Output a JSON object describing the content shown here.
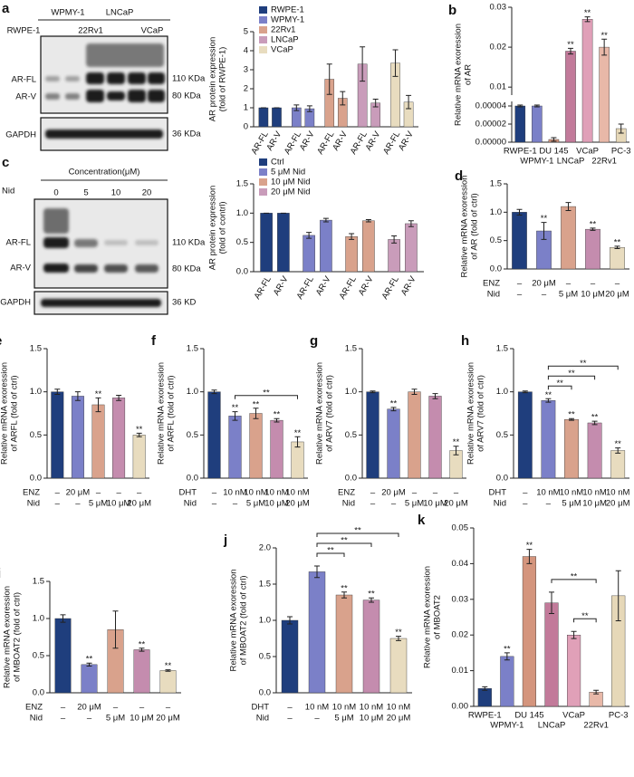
{
  "blots": [
    {
      "panel": "a",
      "groups": [
        "WPMY-1",
        "LNCaP"
      ],
      "lanes": [
        "RWPE-1",
        "22Rv1",
        "VCaP"
      ],
      "bands": [
        "AR-FL",
        "AR-V",
        "GAPDH"
      ],
      "sizes": [
        "110 KDa",
        "80 KDa",
        "36 KDa"
      ]
    },
    {
      "panel": "c",
      "header": "Concentration(μM)",
      "treatment": "Nid",
      "lanes": [
        "0",
        "5",
        "10",
        "20"
      ],
      "bands": [
        "AR-FL",
        "AR-V",
        "GAPDH"
      ],
      "sizes": [
        "110 KDa",
        "80 KDa",
        "36 KD"
      ]
    }
  ],
  "chart_data": [
    {
      "type": "grouped_bar",
      "ylabel": [
        "AR protein expression",
        "(fold of RWPE-1)"
      ],
      "categories": [
        "AR-FL",
        "AR-V"
      ],
      "series": [
        {
          "name": "RWPE-1",
          "color": "#1f3e7d",
          "values": [
            1,
            1
          ],
          "errors": [
            0,
            0
          ]
        },
        {
          "name": "WPMY-1",
          "color": "#7b80c8",
          "values": [
            1.0,
            0.95
          ],
          "errors": [
            0.15,
            0.15
          ]
        },
        {
          "name": "22Rv1",
          "color": "#d9a28c",
          "values": [
            2.5,
            1.5
          ],
          "errors": [
            0.8,
            0.35
          ]
        },
        {
          "name": "LNCaP",
          "color": "#c99cba",
          "values": [
            3.3,
            1.25
          ],
          "errors": [
            0.9,
            0.2
          ]
        },
        {
          "name": "VCaP",
          "color": "#e8dcbf",
          "values": [
            3.35,
            1.3
          ],
          "errors": [
            0.7,
            0.35
          ]
        }
      ],
      "ylim": [
        0,
        5
      ],
      "yticks": [
        0,
        1,
        2,
        3,
        4,
        5
      ]
    },
    {
      "type": "broken_bar",
      "panel": "b",
      "ylabel": [
        "Relative mRNA exoression",
        "of AR"
      ],
      "categories": [
        "RWPE-1",
        "WPMY-1",
        "DU 145",
        "LNCaP",
        "VCaP",
        "22Rv1",
        "PC-3"
      ],
      "values": [
        4e-05,
        4e-05,
        3e-06,
        0.019,
        0.027,
        0.02,
        1.5e-05
      ],
      "errors": [
        1e-06,
        1e-06,
        2e-06,
        0.0007,
        0.0006,
        0.002,
        5e-06
      ],
      "colors": [
        "#1f3e7d",
        "#7b80c8",
        "#d4957d",
        "#c27a9a",
        "#e0a0b8",
        "#e8b8a8",
        "#e6d8b8"
      ],
      "significance": [
        null,
        null,
        null,
        "**",
        "**",
        "**",
        null
      ],
      "ylim_lower": [
        0,
        4.5e-05
      ],
      "yticks_lower": [
        {
          "value": 0,
          "label": "0.00000"
        },
        2e-05,
        4e-05
      ],
      "ylim_upper": [
        0.008,
        0.03
      ],
      "yticks_upper": [
        0.01,
        0.02,
        0.03
      ]
    },
    {
      "type": "grouped_bar",
      "ylabel": [
        "AR protein expression",
        "(fold of contrl)"
      ],
      "categories": [
        "AR-FL",
        "AR-V"
      ],
      "series": [
        {
          "name": "Ctrl",
          "color": "#1f3e7d",
          "values": [
            1,
            1
          ],
          "errors": [
            0,
            0
          ]
        },
        {
          "name": "5 μM Nid",
          "color": "#7b80c8",
          "values": [
            0.62,
            0.88
          ],
          "errors": [
            0.05,
            0.03
          ]
        },
        {
          "name": "10 μM Nid",
          "color": "#d9a28c",
          "values": [
            0.6,
            0.87
          ],
          "errors": [
            0.05,
            0.02
          ]
        },
        {
          "name": "20 μM Nid",
          "color": "#c99cba",
          "values": [
            0.55,
            0.82
          ],
          "errors": [
            0.06,
            0.05
          ]
        }
      ],
      "ylim": [
        0,
        1.5
      ],
      "yticks": [
        {
          "value": 0,
          "label": "0.0"
        },
        0.5,
        {
          "value": 1,
          "label": "1.0"
        },
        1.5
      ]
    },
    {
      "type": "bar",
      "panel": "d",
      "ylabel": [
        "Relative mRNA exoression",
        "of AR (fold of ctrl)"
      ],
      "values": [
        1.0,
        0.67,
        1.1,
        0.7,
        0.38
      ],
      "errors": [
        0.05,
        0.15,
        0.07,
        0.02,
        0.02
      ],
      "colors": [
        "#1f3e7d",
        "#7b80c8",
        "#d9a28c",
        "#c48cae",
        "#e8dcbf"
      ],
      "significance": [
        null,
        "**",
        null,
        "**",
        "**"
      ],
      "treatments": [
        {
          "name": "ENZ",
          "labels": [
            "–",
            "20 μM",
            "–",
            "–",
            "–"
          ]
        },
        {
          "name": "Nid",
          "labels": [
            "–",
            "–",
            "5 μM",
            "10 μM",
            "20 μM"
          ]
        }
      ],
      "ylim": [
        0,
        1.5
      ],
      "yticks": [
        {
          "value": 0,
          "label": "0.0"
        },
        0.5,
        {
          "value": 1,
          "label": "1.0"
        },
        1.5
      ]
    },
    {
      "type": "bar",
      "panel": "e",
      "ylabel": [
        "Relative mRNA exoression",
        "of ARFL (fold of ctrl)"
      ],
      "values": [
        1.0,
        0.95,
        0.85,
        0.93,
        0.5
      ],
      "errors": [
        0.03,
        0.05,
        0.08,
        0.03,
        0.02
      ],
      "colors": [
        "#1f3e7d",
        "#7b80c8",
        "#d9a28c",
        "#c48cae",
        "#e8dcbf"
      ],
      "significance": [
        null,
        null,
        "**",
        null,
        "**"
      ],
      "treatments": [
        {
          "name": "ENZ",
          "labels": [
            "–",
            "20 μM",
            "–",
            "–",
            "–"
          ]
        },
        {
          "name": "Nid",
          "labels": [
            "–",
            "–",
            "5 μM",
            "10 μM",
            "20 μM"
          ]
        }
      ],
      "ylim": [
        0,
        1.5
      ],
      "yticks": [
        {
          "value": 0,
          "label": "0.0"
        },
        0.5,
        {
          "value": 1,
          "label": "1.0"
        },
        1.5
      ]
    },
    {
      "type": "bar",
      "panel": "f",
      "ylabel": [
        "Relative mRNA exoression",
        "of ARFL (fold of ctrl)"
      ],
      "values": [
        1.0,
        0.72,
        0.75,
        0.67,
        0.42
      ],
      "errors": [
        0.02,
        0.05,
        0.06,
        0.02,
        0.06
      ],
      "colors": [
        "#1f3e7d",
        "#7b80c8",
        "#d9a28c",
        "#c48cae",
        "#e8dcbf"
      ],
      "significance": [
        null,
        "**",
        "**",
        "**",
        "**"
      ],
      "treatments": [
        {
          "name": "DHT",
          "labels": [
            "–",
            "10 nM",
            "10 nM",
            "10 nM",
            "10 nM"
          ]
        },
        {
          "name": "Nid",
          "labels": [
            "–",
            "–",
            "5 μM",
            "10 μM",
            "20 μM"
          ]
        }
      ],
      "comparisons": [
        {
          "from": 1,
          "to": 4,
          "label": "**"
        }
      ],
      "ylim": [
        0,
        1.5
      ],
      "yticks": [
        {
          "value": 0,
          "label": "0.0"
        },
        0.5,
        {
          "value": 1,
          "label": "1.0"
        },
        1.5
      ]
    },
    {
      "type": "bar",
      "panel": "g",
      "ylabel": [
        "Relative mRNA exoression",
        "of ARV7 (fold of ctrl)"
      ],
      "values": [
        1.0,
        0.8,
        1.0,
        0.95,
        0.32
      ],
      "errors": [
        0.01,
        0.02,
        0.03,
        0.03,
        0.05
      ],
      "colors": [
        "#1f3e7d",
        "#7b80c8",
        "#d9a28c",
        "#c48cae",
        "#e8dcbf"
      ],
      "significance": [
        null,
        "**",
        null,
        null,
        "**"
      ],
      "treatments": [
        {
          "name": "ENZ",
          "labels": [
            "–",
            "20 μM",
            "–",
            "–",
            "–"
          ]
        },
        {
          "name": "Nid",
          "labels": [
            "–",
            "–",
            "5 μM",
            "10 μM",
            "20 μM"
          ]
        }
      ],
      "ylim": [
        0,
        1.5
      ],
      "yticks": [
        {
          "value": 0,
          "label": "0.0"
        },
        0.5,
        {
          "value": 1,
          "label": "1.0"
        },
        1.5
      ]
    },
    {
      "type": "bar",
      "panel": "h",
      "ylabel": [
        "Relative mRNA exoression",
        "of ARV7 (fold of ctrl)"
      ],
      "values": [
        1.0,
        0.9,
        0.68,
        0.64,
        0.32
      ],
      "errors": [
        0.01,
        0.02,
        0.01,
        0.02,
        0.03
      ],
      "colors": [
        "#1f3e7d",
        "#7b80c8",
        "#d9a28c",
        "#c48cae",
        "#e8dcbf"
      ],
      "significance": [
        null,
        "**",
        "**",
        "**",
        "**"
      ],
      "treatments": [
        {
          "name": "DHT",
          "labels": [
            "–",
            "10 nM",
            "10 nM",
            "10 nM",
            "10 nM"
          ]
        },
        {
          "name": "Nid",
          "labels": [
            "–",
            "–",
            "5 μM",
            "10 μM",
            "20 μM"
          ]
        }
      ],
      "comparisons": [
        {
          "from": 1,
          "to": 2,
          "label": "**"
        },
        {
          "from": 1,
          "to": 3,
          "label": "**"
        },
        {
          "from": 1,
          "to": 4,
          "label": "**"
        }
      ],
      "ylim": [
        0,
        1.5
      ],
      "yticks": [
        {
          "value": 0,
          "label": "0.0"
        },
        0.5,
        {
          "value": 1,
          "label": "1.0"
        },
        1.5
      ]
    },
    {
      "type": "bar",
      "panel": "i",
      "ylabel": [
        "Relative mRNA exoression",
        "of MBOAT2 (fold of ctrl)"
      ],
      "values": [
        1.0,
        0.38,
        0.85,
        0.58,
        0.3
      ],
      "errors": [
        0.05,
        0.02,
        0.25,
        0.02,
        0.01
      ],
      "colors": [
        "#1f3e7d",
        "#7b80c8",
        "#d9a28c",
        "#c48cae",
        "#e8dcbf"
      ],
      "significance": [
        null,
        "**",
        null,
        "**",
        "**"
      ],
      "treatments": [
        {
          "name": "ENZ",
          "labels": [
            "–",
            "20 μM",
            "–",
            "–",
            "–"
          ]
        },
        {
          "name": "Nid",
          "labels": [
            "–",
            "–",
            "5 μM",
            "10 μM",
            "20 μM"
          ]
        }
      ],
      "ylim": [
        0,
        1.5
      ],
      "yticks": [
        {
          "value": 0,
          "label": "0.0"
        },
        0.5,
        {
          "value": 1,
          "label": "1.0"
        },
        1.5
      ]
    },
    {
      "type": "bar",
      "panel": "j",
      "ylabel": [
        "Relative mRNA exoression",
        "of MBOAT2 (fold of ctrl)"
      ],
      "values": [
        1.0,
        1.67,
        1.35,
        1.28,
        0.75
      ],
      "errors": [
        0.05,
        0.08,
        0.04,
        0.03,
        0.03
      ],
      "colors": [
        "#1f3e7d",
        "#7b80c8",
        "#d9a28c",
        "#c48cae",
        "#e8dcbf"
      ],
      "significance": [
        null,
        null,
        "**",
        "**",
        "**"
      ],
      "treatments": [
        {
          "name": "DHT",
          "labels": [
            "–",
            "10 nM",
            "10 nM",
            "10 nM",
            "10 nM"
          ]
        },
        {
          "name": "Nid",
          "labels": [
            "–",
            "–",
            "5 μM",
            "10 μM",
            "20 μM"
          ]
        }
      ],
      "comparisons": [
        {
          "from": 1,
          "to": 2,
          "label": "**"
        },
        {
          "from": 1,
          "to": 3,
          "label": "**"
        },
        {
          "from": 1,
          "to": 4,
          "label": "**"
        }
      ],
      "ylim": [
        0,
        2
      ],
      "yticks": [
        {
          "value": 0,
          "label": "0.0"
        },
        0.5,
        {
          "value": 1,
          "label": "1.0"
        },
        1.5,
        {
          "value": 2,
          "label": "2.0"
        }
      ]
    },
    {
      "type": "bar",
      "panel": "k",
      "ylabel": [
        "Relative mRNA exoression",
        "of MBOAT2"
      ],
      "categories": [
        "RWPE-1",
        "WPMY-1",
        "DU 145",
        "LNCaP",
        "VCaP",
        "22Rv1",
        "PC-3"
      ],
      "values": [
        0.005,
        0.014,
        0.042,
        0.029,
        0.02,
        0.004,
        0.031
      ],
      "errors": [
        0.0005,
        0.001,
        0.002,
        0.003,
        0.001,
        0.0005,
        0.007
      ],
      "colors": [
        "#1f3e7d",
        "#7b80c8",
        "#d4957d",
        "#c27a9a",
        "#e0a0b8",
        "#e8b8a8",
        "#e6d8b8"
      ],
      "significance": [
        null,
        "**",
        "**",
        null,
        null,
        null,
        null
      ],
      "comparisons": [
        {
          "from": 4,
          "to": 5,
          "label": "**"
        },
        {
          "from": 3,
          "to": 5,
          "label": "**"
        }
      ],
      "ylim": [
        0,
        0.05
      ],
      "yticks": [
        {
          "value": 0,
          "label": "0.00"
        },
        0.01,
        0.02,
        0.03,
        0.04,
        0.05
      ]
    }
  ]
}
